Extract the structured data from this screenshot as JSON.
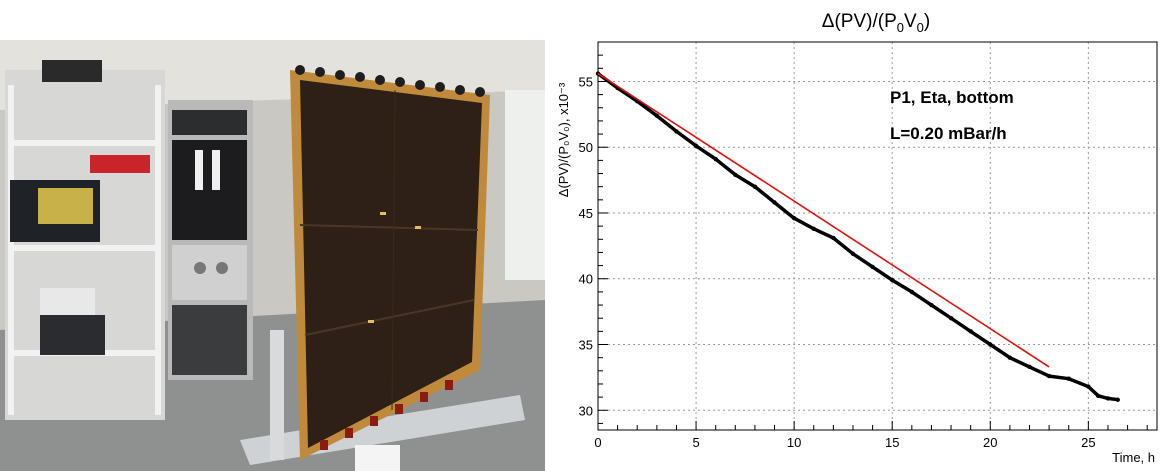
{
  "photo": {
    "description_icon": "laboratory-photo",
    "detector_face_color": "#2e2016",
    "frame_color": "#c08a3c"
  },
  "chart_data": {
    "type": "line",
    "title": "Δ(PV)/(P₀V₀)",
    "title_main": "Δ(PV)/(P",
    "title_sub1": "0",
    "title_mid": "V",
    "title_sub2": "0",
    "title_end": ")",
    "ylabel_text": "Δ(PV)/(P₀V₀), x10⁻³",
    "xlabel": "Time, h",
    "xlim": [
      0,
      28.5
    ],
    "ylim": [
      28.5,
      58
    ],
    "xticks": [
      0,
      5,
      10,
      15,
      20,
      25
    ],
    "yticks": [
      30,
      35,
      40,
      45,
      50,
      55
    ],
    "grid": true,
    "annotations": [
      "P1, Eta, bottom",
      "L=0.20 mBar/h"
    ],
    "series": [
      {
        "style": "data-points",
        "color": "#000000",
        "x": [
          0,
          1,
          2,
          3,
          4,
          5,
          6,
          7,
          8,
          9,
          10,
          11,
          12,
          13,
          14,
          15,
          16,
          17,
          18,
          19,
          20,
          21,
          22,
          23,
          24,
          25,
          25.5,
          26,
          26.5
        ],
        "y": [
          55.6,
          54.5,
          53.5,
          52.4,
          51.2,
          50.1,
          49.1,
          47.9,
          47.0,
          45.8,
          44.6,
          43.8,
          43.1,
          41.9,
          40.9,
          39.9,
          39.0,
          38.0,
          37.0,
          36.0,
          35.0,
          34.0,
          33.3,
          32.6,
          32.4,
          31.8,
          31.1,
          30.9,
          30.8
        ]
      },
      {
        "style": "fit",
        "color": "#e01010",
        "x": [
          0,
          23
        ],
        "y": [
          55.6,
          33.3
        ]
      }
    ]
  }
}
